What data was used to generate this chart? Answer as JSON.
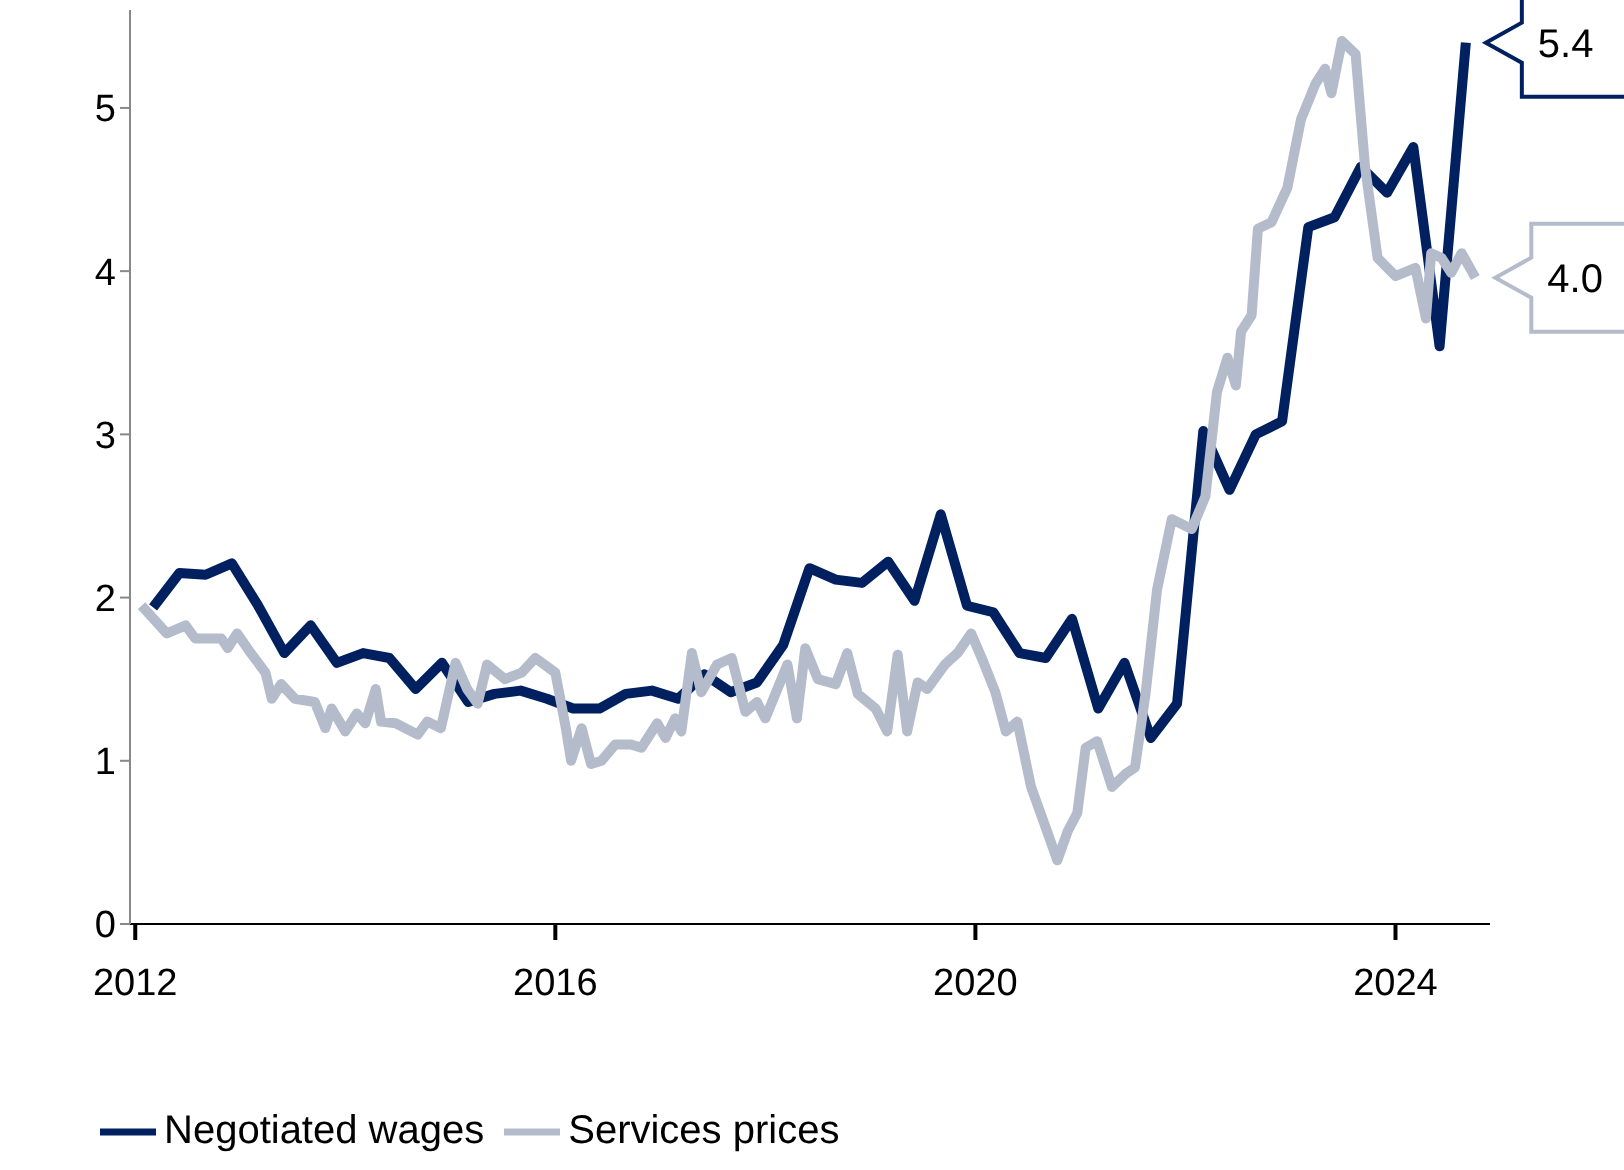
{
  "chart_data": {
    "type": "line",
    "xlim": [
      2011.95,
      2024.9
    ],
    "xticks": [
      2012,
      2016,
      2020,
      2024
    ],
    "ylim": [
      0,
      5.6
    ],
    "yticks": [
      0,
      1,
      2,
      3,
      4,
      5
    ],
    "grid": false,
    "legend": "bottom left",
    "marker": "none",
    "line_style": "solid",
    "annotations": [
      {
        "text": "5.4",
        "x": 2024.67,
        "y": 5.4
      },
      {
        "text": "4.0",
        "x": 2024.76,
        "y": 3.96
      }
    ],
    "series": [
      {
        "name": "Negotiated wages",
        "color": "#002060",
        "x": [
          2012.17,
          2012.42,
          2012.67,
          2012.92,
          2013.17,
          2013.42,
          2013.67,
          2013.92,
          2014.17,
          2014.42,
          2014.67,
          2014.92,
          2015.17,
          2015.42,
          2015.67,
          2015.92,
          2016.17,
          2016.42,
          2016.67,
          2016.92,
          2017.17,
          2017.42,
          2017.67,
          2017.92,
          2018.17,
          2018.42,
          2018.67,
          2018.92,
          2019.17,
          2019.42,
          2019.67,
          2019.92,
          2020.17,
          2020.42,
          2020.67,
          2020.92,
          2021.17,
          2021.42,
          2021.67,
          2021.92,
          2022.17,
          2022.42,
          2022.67,
          2022.92,
          2023.17,
          2023.42,
          2023.67,
          2023.92,
          2024.17,
          2024.42,
          2024.67
        ],
        "values": [
          1.94,
          2.15,
          2.14,
          2.21,
          1.95,
          1.66,
          1.83,
          1.6,
          1.66,
          1.63,
          1.44,
          1.6,
          1.36,
          1.41,
          1.43,
          1.38,
          1.32,
          1.32,
          1.41,
          1.43,
          1.38,
          1.53,
          1.42,
          1.48,
          1.71,
          2.18,
          2.11,
          2.09,
          2.22,
          1.98,
          2.51,
          1.95,
          1.91,
          1.66,
          1.63,
          1.87,
          1.32,
          1.6,
          1.14,
          1.35,
          3.02,
          2.66,
          3.0,
          3.08,
          4.27,
          4.33,
          4.64,
          4.48,
          4.76,
          3.54,
          5.4
        ]
      },
      {
        "name": "Services prices",
        "color": "#b4bccb",
        "x": [
          2012.06,
          2012.3,
          2012.48,
          2012.57,
          2012.82,
          2012.88,
          2012.97,
          2013.1,
          2013.24,
          2013.3,
          2013.39,
          2013.52,
          2013.71,
          2013.81,
          2013.87,
          2014.0,
          2014.11,
          2014.19,
          2014.29,
          2014.34,
          2014.48,
          2014.69,
          2014.78,
          2014.91,
          2015.05,
          2015.16,
          2015.26,
          2015.35,
          2015.52,
          2015.68,
          2015.81,
          2016.0,
          2016.1,
          2016.15,
          2016.25,
          2016.34,
          2016.44,
          2016.57,
          2016.72,
          2016.82,
          2016.97,
          2017.05,
          2017.14,
          2017.2,
          2017.3,
          2017.39,
          2017.54,
          2017.68,
          2017.81,
          2017.92,
          2018.0,
          2018.21,
          2018.3,
          2018.38,
          2018.5,
          2018.67,
          2018.78,
          2018.88,
          2019.05,
          2019.16,
          2019.26,
          2019.35,
          2019.45,
          2019.54,
          2019.71,
          2019.83,
          2019.96,
          2020.06,
          2020.19,
          2020.29,
          2020.4,
          2020.53,
          2020.67,
          2020.78,
          2020.88,
          2020.97,
          2021.05,
          2021.16,
          2021.3,
          2021.43,
          2021.52,
          2021.62,
          2021.73,
          2021.87,
          2022.06,
          2022.19,
          2022.3,
          2022.4,
          2022.48,
          2022.53,
          2022.63,
          2022.69,
          2022.82,
          2022.97,
          2023.1,
          2023.24,
          2023.33,
          2023.39,
          2023.49,
          2023.62,
          2023.71,
          2023.83,
          2024.0,
          2024.19,
          2024.29,
          2024.34,
          2024.44,
          2024.53,
          2024.63,
          2024.76
        ],
        "values": [
          1.95,
          1.78,
          1.83,
          1.75,
          1.75,
          1.69,
          1.78,
          1.66,
          1.54,
          1.38,
          1.47,
          1.38,
          1.36,
          1.2,
          1.32,
          1.18,
          1.29,
          1.23,
          1.44,
          1.24,
          1.23,
          1.16,
          1.24,
          1.2,
          1.6,
          1.44,
          1.35,
          1.59,
          1.5,
          1.54,
          1.63,
          1.54,
          1.2,
          1.0,
          1.2,
          0.98,
          1.0,
          1.1,
          1.1,
          1.08,
          1.23,
          1.14,
          1.26,
          1.18,
          1.66,
          1.42,
          1.59,
          1.63,
          1.3,
          1.36,
          1.26,
          1.59,
          1.26,
          1.69,
          1.5,
          1.47,
          1.66,
          1.41,
          1.32,
          1.18,
          1.65,
          1.18,
          1.48,
          1.44,
          1.59,
          1.66,
          1.78,
          1.63,
          1.42,
          1.18,
          1.24,
          0.84,
          0.59,
          0.39,
          0.57,
          0.68,
          1.08,
          1.12,
          0.84,
          0.92,
          0.96,
          1.41,
          2.05,
          2.48,
          2.42,
          2.62,
          3.26,
          3.47,
          3.3,
          3.63,
          3.73,
          4.26,
          4.3,
          4.51,
          4.93,
          5.15,
          5.24,
          5.09,
          5.41,
          5.33,
          4.64,
          4.08,
          3.97,
          4.02,
          3.71,
          4.11,
          4.08,
          3.99,
          4.11,
          3.96
        ]
      }
    ]
  }
}
